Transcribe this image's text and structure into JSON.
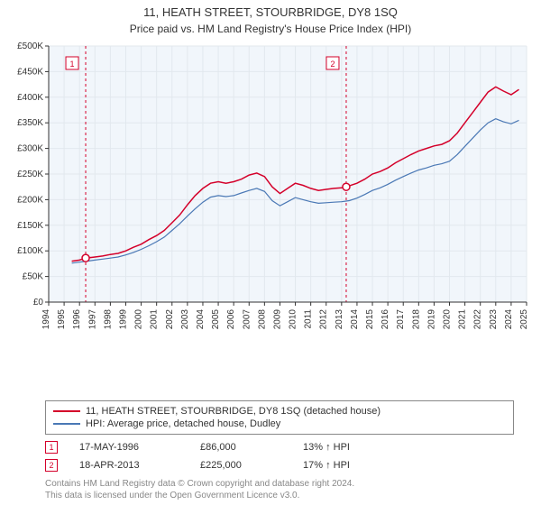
{
  "header": {
    "title": "11, HEATH STREET, STOURBRIDGE, DY8 1SQ",
    "subtitle": "Price paid vs. HM Land Registry's House Price Index (HPI)"
  },
  "chart": {
    "type": "line",
    "plot_bg": "#f1f6fb",
    "page_bg": "#ffffff",
    "grid_color": "#e2e8ee",
    "axis_color": "#333333",
    "tick_font_size": 10,
    "x": {
      "min": 1994,
      "max": 2025,
      "ticks": [
        1994,
        1995,
        1996,
        1997,
        1998,
        1999,
        2000,
        2001,
        2002,
        2003,
        2004,
        2005,
        2006,
        2007,
        2008,
        2009,
        2010,
        2011,
        2012,
        2013,
        2014,
        2015,
        2016,
        2017,
        2018,
        2019,
        2020,
        2021,
        2022,
        2023,
        2024,
        2025
      ]
    },
    "y": {
      "min": 0,
      "max": 500000,
      "ticks": [
        0,
        50000,
        100000,
        150000,
        200000,
        250000,
        300000,
        350000,
        400000,
        450000,
        500000
      ],
      "prefix": "£",
      "suffix": "K",
      "divisor": 1000
    },
    "series": [
      {
        "name": "property",
        "label": "11, HEATH STREET, STOURBRIDGE, DY8 1SQ (detached house)",
        "color": "#d4002a",
        "line_width": 1.5,
        "points": [
          [
            1995.5,
            80000
          ],
          [
            1996,
            82000
          ],
          [
            1996.4,
            86000
          ],
          [
            1997,
            88000
          ],
          [
            1997.5,
            90000
          ],
          [
            1998,
            93000
          ],
          [
            1998.5,
            95000
          ],
          [
            1999,
            100000
          ],
          [
            1999.5,
            107000
          ],
          [
            2000,
            113000
          ],
          [
            2000.5,
            122000
          ],
          [
            2001,
            130000
          ],
          [
            2001.5,
            140000
          ],
          [
            2002,
            155000
          ],
          [
            2002.5,
            170000
          ],
          [
            2003,
            190000
          ],
          [
            2003.5,
            208000
          ],
          [
            2004,
            222000
          ],
          [
            2004.5,
            232000
          ],
          [
            2005,
            235000
          ],
          [
            2005.5,
            232000
          ],
          [
            2006,
            235000
          ],
          [
            2006.5,
            240000
          ],
          [
            2007,
            248000
          ],
          [
            2007.5,
            252000
          ],
          [
            2008,
            245000
          ],
          [
            2008.5,
            225000
          ],
          [
            2009,
            212000
          ],
          [
            2009.5,
            222000
          ],
          [
            2010,
            232000
          ],
          [
            2010.5,
            228000
          ],
          [
            2011,
            222000
          ],
          [
            2011.5,
            218000
          ],
          [
            2012,
            220000
          ],
          [
            2012.5,
            222000
          ],
          [
            2013,
            223000
          ],
          [
            2013.3,
            225000
          ],
          [
            2014,
            232000
          ],
          [
            2014.5,
            240000
          ],
          [
            2015,
            250000
          ],
          [
            2015.5,
            255000
          ],
          [
            2016,
            262000
          ],
          [
            2016.5,
            272000
          ],
          [
            2017,
            280000
          ],
          [
            2017.5,
            288000
          ],
          [
            2018,
            295000
          ],
          [
            2018.5,
            300000
          ],
          [
            2019,
            305000
          ],
          [
            2019.5,
            308000
          ],
          [
            2020,
            315000
          ],
          [
            2020.5,
            330000
          ],
          [
            2021,
            350000
          ],
          [
            2021.5,
            370000
          ],
          [
            2022,
            390000
          ],
          [
            2022.5,
            410000
          ],
          [
            2023,
            420000
          ],
          [
            2023.5,
            412000
          ],
          [
            2024,
            405000
          ],
          [
            2024.5,
            415000
          ]
        ]
      },
      {
        "name": "hpi",
        "label": "HPI: Average price, detached house, Dudley",
        "color": "#4a78b5",
        "line_width": 1.2,
        "points": [
          [
            1995.5,
            76000
          ],
          [
            1996,
            78000
          ],
          [
            1996.5,
            80000
          ],
          [
            1997,
            82000
          ],
          [
            1997.5,
            84000
          ],
          [
            1998,
            86000
          ],
          [
            1998.5,
            88000
          ],
          [
            1999,
            92000
          ],
          [
            1999.5,
            97000
          ],
          [
            2000,
            103000
          ],
          [
            2000.5,
            110000
          ],
          [
            2001,
            118000
          ],
          [
            2001.5,
            127000
          ],
          [
            2002,
            140000
          ],
          [
            2002.5,
            153000
          ],
          [
            2003,
            168000
          ],
          [
            2003.5,
            182000
          ],
          [
            2004,
            195000
          ],
          [
            2004.5,
            205000
          ],
          [
            2005,
            208000
          ],
          [
            2005.5,
            206000
          ],
          [
            2006,
            208000
          ],
          [
            2006.5,
            213000
          ],
          [
            2007,
            218000
          ],
          [
            2007.5,
            222000
          ],
          [
            2008,
            216000
          ],
          [
            2008.5,
            198000
          ],
          [
            2009,
            188000
          ],
          [
            2009.5,
            196000
          ],
          [
            2010,
            204000
          ],
          [
            2010.5,
            200000
          ],
          [
            2011,
            196000
          ],
          [
            2011.5,
            193000
          ],
          [
            2012,
            194000
          ],
          [
            2012.5,
            195000
          ],
          [
            2013,
            196000
          ],
          [
            2013.5,
            198000
          ],
          [
            2014,
            203000
          ],
          [
            2014.5,
            210000
          ],
          [
            2015,
            218000
          ],
          [
            2015.5,
            223000
          ],
          [
            2016,
            230000
          ],
          [
            2016.5,
            238000
          ],
          [
            2017,
            245000
          ],
          [
            2017.5,
            252000
          ],
          [
            2018,
            258000
          ],
          [
            2018.5,
            262000
          ],
          [
            2019,
            267000
          ],
          [
            2019.5,
            270000
          ],
          [
            2020,
            275000
          ],
          [
            2020.5,
            288000
          ],
          [
            2021,
            304000
          ],
          [
            2021.5,
            320000
          ],
          [
            2022,
            336000
          ],
          [
            2022.5,
            350000
          ],
          [
            2023,
            358000
          ],
          [
            2023.5,
            352000
          ],
          [
            2024,
            348000
          ],
          [
            2024.5,
            355000
          ]
        ]
      }
    ],
    "markers": [
      {
        "n": "1",
        "x": 1996.4,
        "y": 86000,
        "color": "#d4002a",
        "vline_color": "#d4002a"
      },
      {
        "n": "2",
        "x": 2013.3,
        "y": 225000,
        "color": "#d4002a",
        "vline_color": "#d4002a"
      }
    ]
  },
  "legend": {
    "items": [
      {
        "color": "#d4002a",
        "label": "11, HEATH STREET, STOURBRIDGE, DY8 1SQ (detached house)"
      },
      {
        "color": "#4a78b5",
        "label": "HPI: Average price, detached house, Dudley"
      }
    ]
  },
  "data_points": [
    {
      "n": "1",
      "color": "#d4002a",
      "date": "17-MAY-1996",
      "price": "£86,000",
      "delta": "13% ↑ HPI"
    },
    {
      "n": "2",
      "color": "#d4002a",
      "date": "18-APR-2013",
      "price": "£225,000",
      "delta": "17% ↑ HPI"
    }
  ],
  "footer": {
    "line1": "Contains HM Land Registry data © Crown copyright and database right 2024.",
    "line2": "This data is licensed under the Open Government Licence v3.0."
  }
}
